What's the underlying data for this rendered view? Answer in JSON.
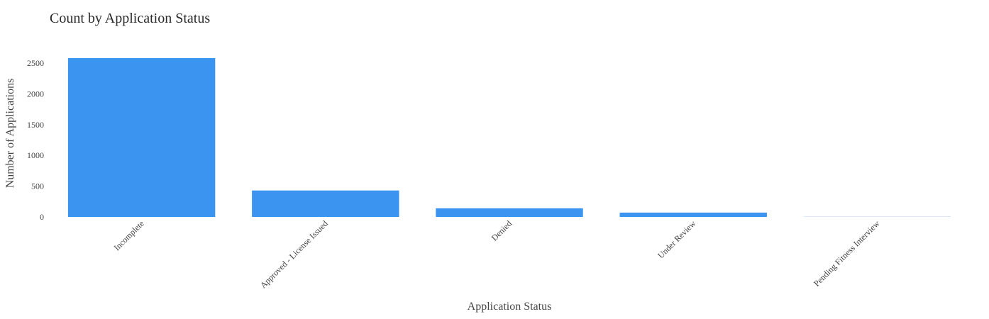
{
  "chart_data": {
    "type": "bar",
    "title": "Count by Application Status",
    "xlabel": "Application Status",
    "ylabel": "Number of Applications",
    "categories": [
      "Incomplete",
      "Approved - License Issued",
      "Denied",
      "Under Review",
      "Pending Fitness Interview"
    ],
    "values": [
      2580,
      430,
      140,
      70,
      2
    ],
    "ylim": [
      0,
      2580
    ],
    "yticks": [
      "0",
      "500",
      "1000",
      "1500",
      "2000",
      "2500"
    ],
    "grid": false,
    "legend": "none",
    "bar_color": "#3b94ef"
  }
}
